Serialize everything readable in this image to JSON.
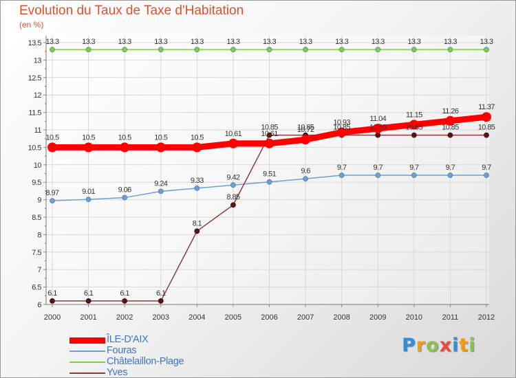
{
  "chart_data": {
    "type": "line",
    "title": "Evolution du Taux de Taxe d'Habitation",
    "unit_label": "(en %)",
    "ylim": [
      6,
      13.5
    ],
    "yticks": [
      "6",
      "6.5",
      "7",
      "7.5",
      "8",
      "8.5",
      "9",
      "9.5",
      "10",
      "10.5",
      "11",
      "11.5",
      "12",
      "12.5",
      "13",
      "13.5"
    ],
    "x": [
      "2000",
      "2001",
      "2002",
      "2003",
      "2004",
      "2005",
      "2006",
      "2007",
      "2008",
      "2009",
      "2010",
      "2011",
      "2012"
    ],
    "grid": true,
    "legend_position": "bottom-left",
    "series": [
      {
        "name": "Châtelaillon-Plage",
        "color": "#7ed040",
        "values": [
          13.3,
          13.3,
          13.3,
          13.3,
          13.3,
          13.3,
          13.3,
          13.3,
          13.3,
          13.3,
          13.3,
          13.3,
          13.3
        ],
        "labels": [
          "13.3",
          "13.3",
          "13.3",
          "13.3",
          "13.3",
          "13.3",
          "13.3",
          "13.3",
          "13.3",
          "13.3",
          "13.3",
          "13.3",
          "13.3"
        ]
      },
      {
        "name": "Fouras",
        "color": "#6aa0d2",
        "values": [
          8.97,
          9.01,
          9.06,
          9.24,
          9.33,
          9.42,
          9.51,
          9.6,
          9.7,
          9.7,
          9.7,
          9.7,
          9.7
        ],
        "labels": [
          "8.97",
          "9.01",
          "9.06",
          "9.24",
          "9.33",
          "9.42",
          "9.51",
          "9.6",
          "9.7",
          "9.7",
          "9.7",
          "9.7",
          "9.7"
        ]
      },
      {
        "name": "Yves",
        "color": "#8e3a3a",
        "values": [
          6.1,
          6.1,
          6.1,
          6.1,
          8.1,
          8.85,
          10.85,
          10.85,
          10.85,
          10.85,
          10.85,
          10.85,
          10.85
        ],
        "labels": [
          "6.1",
          "6.1",
          "6.1",
          "6.1",
          "8.1",
          "8.85",
          "10.85",
          "10.85",
          "10.85",
          "10.85",
          "10.85",
          "10.85",
          "10.85"
        ]
      },
      {
        "name": "ÎLE-D'AIX",
        "color": "#ff0000",
        "values": [
          10.5,
          10.5,
          10.5,
          10.5,
          10.5,
          10.61,
          10.61,
          10.72,
          10.93,
          11.04,
          11.15,
          11.26,
          11.37
        ],
        "labels": [
          "10.5",
          "10.5",
          "10.5",
          "10.5",
          "10.5",
          "10.61",
          "10.61",
          "10.72",
          "10.93",
          "11.04",
          "11.15",
          "11.26",
          "11.37"
        ]
      }
    ]
  },
  "legend": {
    "items": [
      {
        "label": "ÎLE-D'AIX",
        "color": "#ff0000",
        "weight": "thick"
      },
      {
        "label": "Fouras",
        "color": "#6aa0d2",
        "weight": "thin"
      },
      {
        "label": "Châtelaillon-Plage",
        "color": "#7ed040",
        "weight": "thin"
      },
      {
        "label": "Yves",
        "color": "#8e3a3a",
        "weight": "thin"
      }
    ]
  },
  "logo": {
    "letters": [
      "P",
      "r",
      "o",
      "x",
      "i",
      "t",
      "i"
    ],
    "colors": [
      "#2f8fd8",
      "#f39c12",
      "#8bc34a",
      "#e74c3c",
      "#2f8fd8",
      "#f39c12",
      "#8bc34a"
    ]
  }
}
